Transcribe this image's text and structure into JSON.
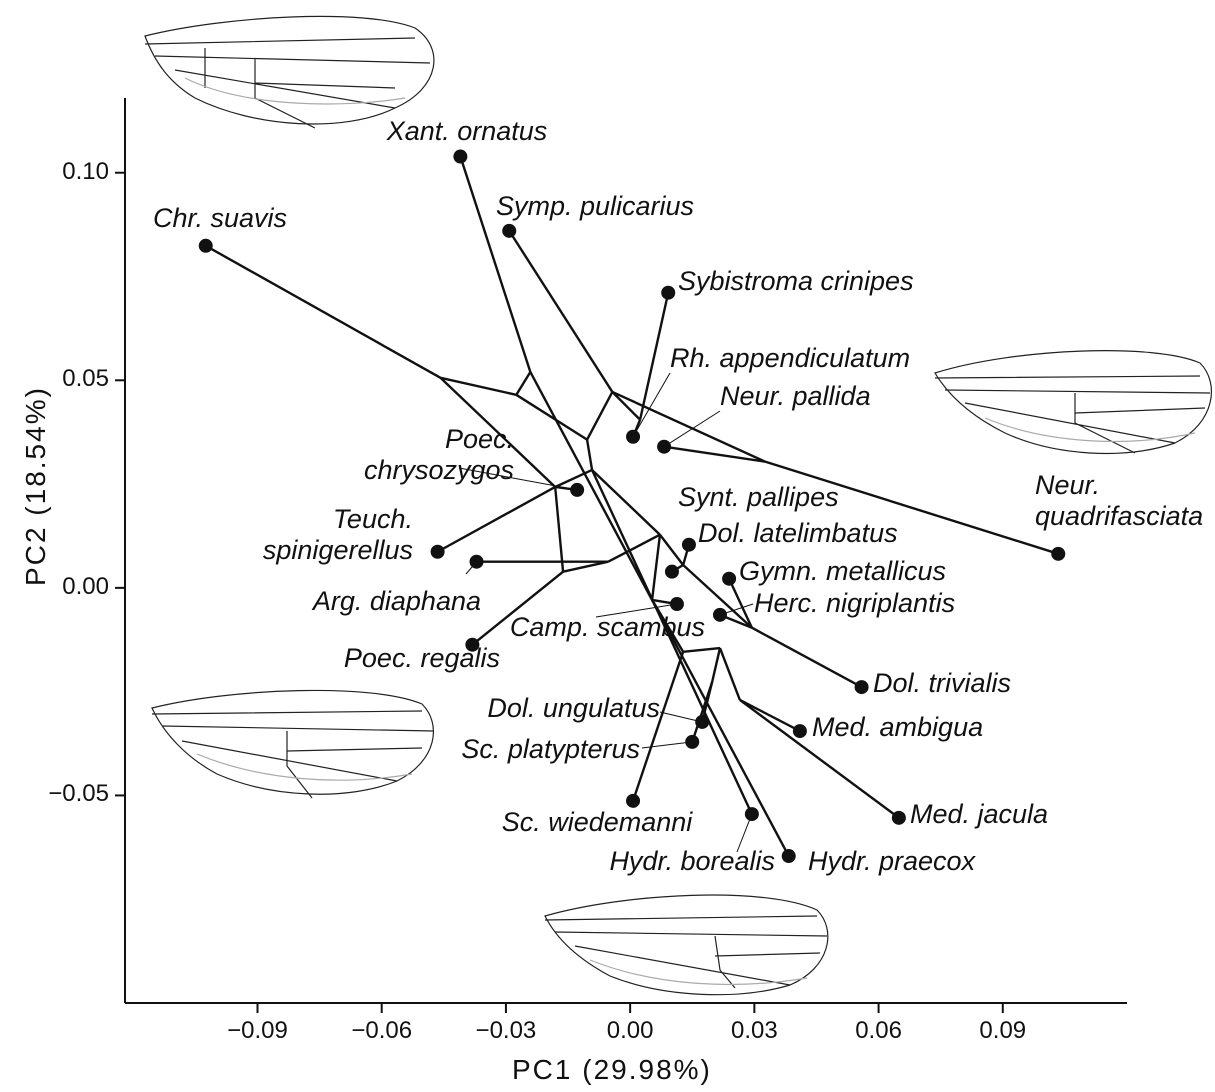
{
  "chart_data": {
    "type": "scatter",
    "x_label": "PC1 (29.98%)",
    "y_label": "PC2 (18.54%)",
    "xlim": [
      -0.122,
      0.12
    ],
    "ylim": [
      -0.1,
      0.118
    ],
    "xticks": [
      {
        "value": -0.09,
        "label": "−0.09"
      },
      {
        "value": -0.06,
        "label": "−0.06"
      },
      {
        "value": -0.03,
        "label": "−0.03"
      },
      {
        "value": 0,
        "label": "0.00"
      },
      0.03,
      0.06,
      0.09
    ],
    "yticks": [
      {
        "value": -0.05,
        "label": "−0.05"
      },
      {
        "value": 0,
        "label": "0.00"
      },
      0.05,
      {
        "value": 0.1,
        "label": "0.10"
      }
    ],
    "color": "#111111",
    "labels": [
      "Chr. suavis",
      "Xant. ornatus",
      "Symp. pulicarius",
      "Sybistroma crinipes",
      "Rh. appendiculatum",
      "Neur. pallida",
      "Neur.\nquadrifasciata",
      "Poec.\nchrysozygos",
      "Teuch.\nspinigerellus",
      "Arg. diaphana",
      "Poec. regalis",
      "Synt. pallipes",
      "Dol. latelimbatus",
      "Gymn. metallicus",
      "Herc. nigriplantis",
      "Camp. scambus",
      "Dol. trivialis",
      "Med. ambigua",
      "Med. jacula",
      "Dol. ungulatus",
      "Sc. platypterus",
      "Sc. wiedemanni",
      "Hydr. borealis",
      "Hydr. praecox"
    ],
    "x": [
      -0.1025,
      -0.041,
      -0.0292,
      0.0092,
      0.0007,
      0.0082,
      0.1034,
      -0.0128,
      -0.0465,
      -0.0371,
      -0.0381,
      0.0101,
      0.0142,
      0.0239,
      0.0217,
      0.0113,
      0.0559,
      0.041,
      0.0649,
      0.0174,
      0.015,
      0.0007,
      0.0294,
      0.0383
    ],
    "y": [
      0.0824,
      0.1039,
      0.086,
      0.0711,
      0.0364,
      0.034,
      0.0082,
      0.0236,
      0.0087,
      0.0063,
      -0.0137,
      0.0039,
      0.0104,
      0.0022,
      -0.0065,
      -0.0039,
      -0.0239,
      -0.0345,
      -0.0554,
      -0.0323,
      -0.0371,
      -0.0513,
      -0.0545,
      -0.0646
    ],
    "tree": {
      "x": [
        -0.0458,
        -0.0275,
        -0.0241,
        -0.0181,
        -0.0104,
        -0.0043,
        0.0024,
        0.0326,
        -0.0092,
        -0.0162,
        -0.0053,
        0.0072,
        0.0128,
        0.0053,
        0.0294,
        0.0217,
        0.0128,
        0.0198,
        0.0265
      ],
      "y": [
        0.0506,
        0.0465,
        0.052,
        0.0243,
        0.0357,
        0.0472,
        0.0405,
        0.0304,
        0.0284,
        0.0039,
        0.0063,
        0.0128,
        0.0055,
        -0.0029,
        -0.0096,
        -0.0145,
        -0.0154,
        -0.0227,
        -0.027
      ],
      "edges": [
        [
          0,
          24
        ],
        [
          24,
          25
        ],
        [
          24,
          27
        ],
        [
          25,
          26
        ],
        [
          26,
          1
        ],
        [
          25,
          28
        ],
        [
          28,
          29
        ],
        [
          29,
          2
        ],
        [
          29,
          30
        ],
        [
          30,
          3
        ],
        [
          30,
          4
        ],
        [
          29,
          31
        ],
        [
          31,
          5
        ],
        [
          31,
          6
        ],
        [
          28,
          32
        ],
        [
          32,
          27
        ],
        [
          27,
          7
        ],
        [
          27,
          8
        ],
        [
          27,
          33
        ],
        [
          33,
          10
        ],
        [
          33,
          34
        ],
        [
          34,
          9
        ],
        [
          34,
          35
        ],
        [
          35,
          32
        ],
        [
          35,
          36
        ],
        [
          36,
          11
        ],
        [
          36,
          12
        ],
        [
          35,
          37
        ],
        [
          36,
          38
        ],
        [
          38,
          13
        ],
        [
          38,
          14
        ],
        [
          38,
          16
        ],
        [
          37,
          15
        ],
        [
          37,
          40
        ],
        [
          40,
          39
        ],
        [
          39,
          41
        ],
        [
          41,
          19
        ],
        [
          41,
          20
        ],
        [
          40,
          21
        ],
        [
          39,
          42
        ],
        [
          42,
          17
        ],
        [
          42,
          18
        ],
        [
          32,
          22
        ],
        [
          26,
          23
        ]
      ]
    }
  }
}
